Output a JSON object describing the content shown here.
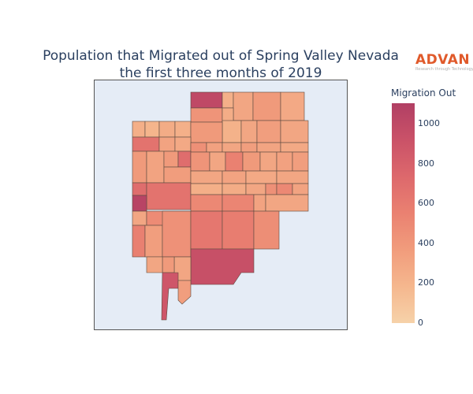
{
  "title": {
    "line1": "Population that Migrated out of Spring Valley Nevada",
    "line2": "the first three months of 2019"
  },
  "logo": {
    "brand": "ADVAN",
    "tagline": "Research through Technology"
  },
  "legend": {
    "title": "Migration Out",
    "ticks": [
      "1000",
      "800",
      "600",
      "400",
      "200",
      "0"
    ],
    "min": 0,
    "max": 1100,
    "colorscale": [
      "#f6d2a9",
      "#f5b78e",
      "#f19c7c",
      "#ea8171",
      "#dd686c",
      "#ca5268",
      "#b13f64"
    ]
  },
  "map": {
    "region": "Spring Valley Nevada",
    "background": "#e5ecf6",
    "border_color": "#555555"
  }
}
